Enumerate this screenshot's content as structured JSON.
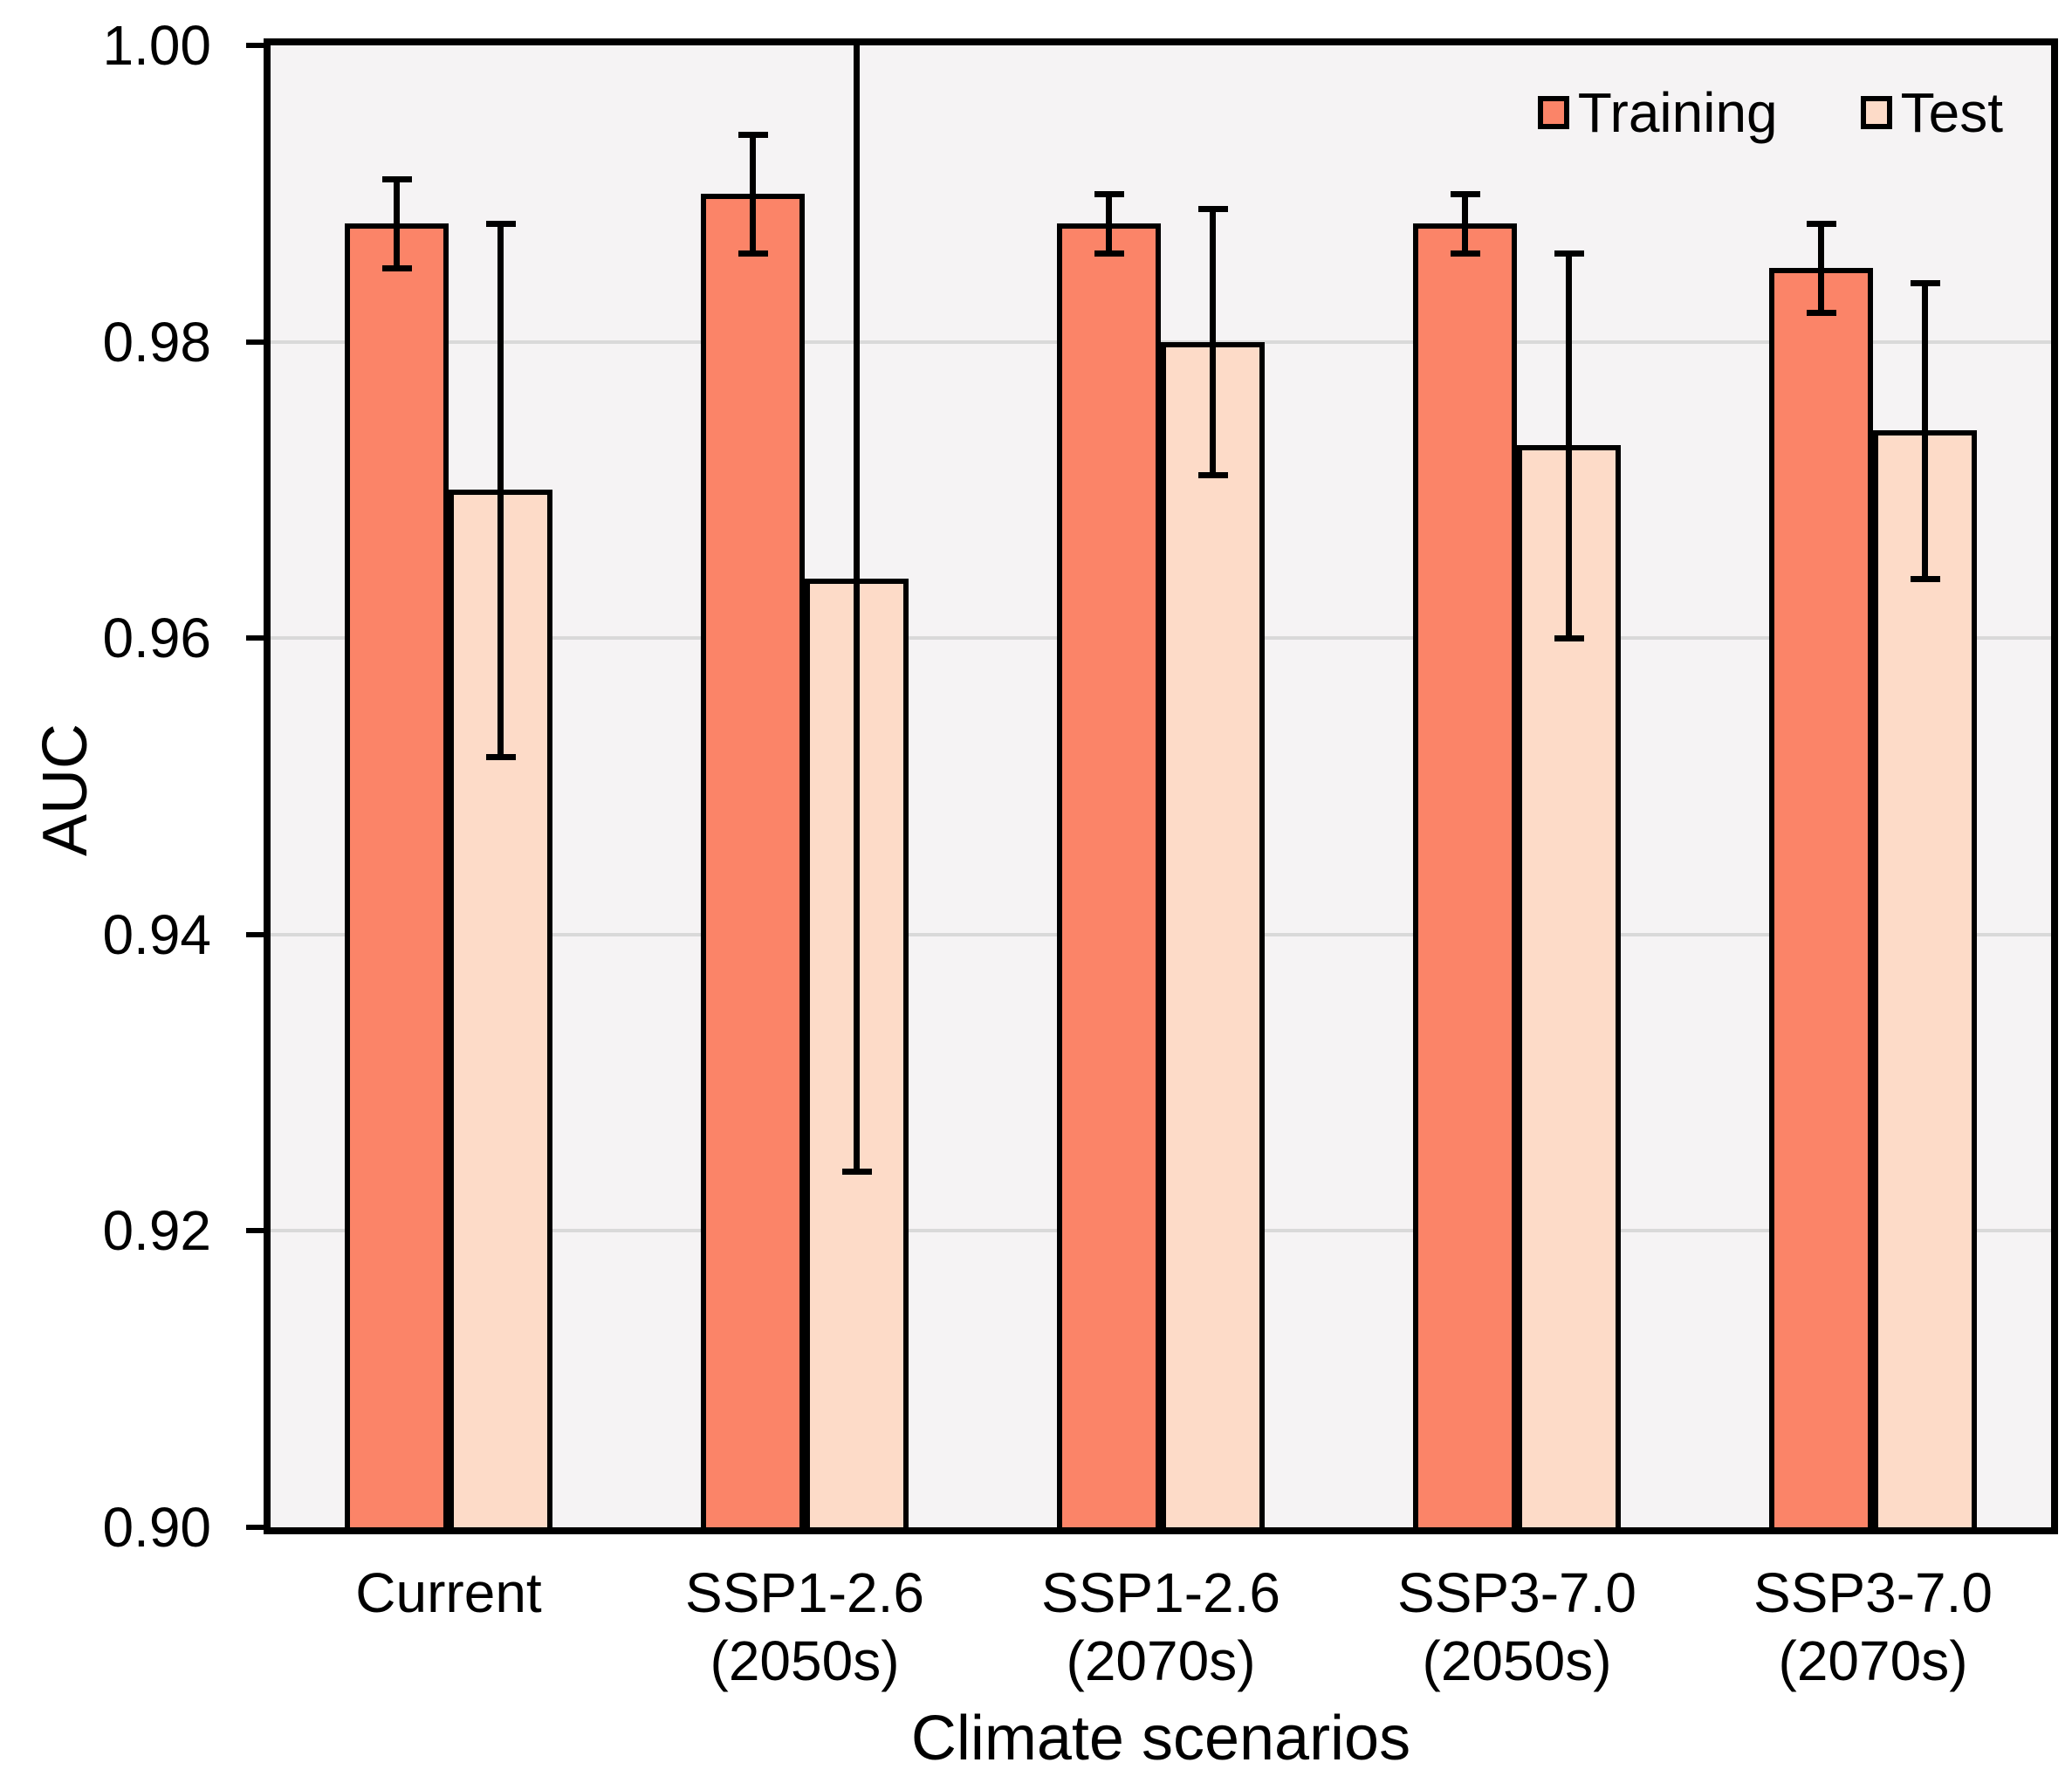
{
  "chart_data": {
    "type": "bar",
    "title": "",
    "categories": [
      "Current",
      "SSP1-2.6 (2050s)",
      "SSP1-2.6 (2070s)",
      "SSP3-7.0 (2050s)",
      "SSP3-7.0 (2070s)"
    ],
    "category_label_lines": [
      [
        "Current"
      ],
      [
        "SSP1-2.6",
        "(2050s)"
      ],
      [
        "SSP1-2.6",
        "(2070s)"
      ],
      [
        "SSP3-7.0",
        "(2050s)"
      ],
      [
        "SSP3-7.0",
        "(2070s)"
      ]
    ],
    "series": [
      {
        "name": "Training",
        "color": "#FB8468",
        "values": [
          0.988,
          0.99,
          0.988,
          0.988,
          0.985
        ],
        "errors": [
          0.003,
          0.004,
          0.002,
          0.002,
          0.003
        ]
      },
      {
        "name": "Test",
        "color": "#FDDBC8",
        "values": [
          0.97,
          0.964,
          0.98,
          0.973,
          0.974
        ],
        "errors": [
          0.018,
          0.04,
          0.009,
          0.013,
          0.01
        ]
      }
    ],
    "xlabel": "Climate scenarios",
    "ylabel": "AUC",
    "ylim": [
      0.9,
      1.0
    ],
    "yticks": [
      1.0,
      0.98,
      0.96,
      0.94,
      0.92,
      0.9
    ],
    "ytick_labels": [
      "1.00",
      "0.98",
      "0.96",
      "0.94",
      "0.92",
      "0.90"
    ],
    "grid": true,
    "legend_position": "top-right-inside",
    "error_bars_clipped_at_ymax": true
  },
  "styles": {
    "plot_bg": "#F5F3F4",
    "grid_color": "#D9D9D9",
    "axis_color": "#000000",
    "bar_border_color": "#000000",
    "error_bar_color": "#000000"
  }
}
